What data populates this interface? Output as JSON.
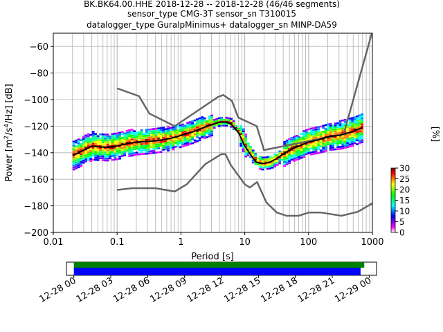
{
  "title_lines": [
    "BK.BK64.00.HHE   2018-12-28 -- 2018-12-28  (46/46 segments)",
    "sensor_type CMG-3T sensor_sn T310015",
    "datalogger_type GuralpMinimus+ datalogger_sn MINP-DA59"
  ],
  "colors": {
    "model_curves": "#666666",
    "mean_curve": "#000000",
    "mode_curve": "#ffff00",
    "grid": "#b0b0b0",
    "coverage_top": "#008000",
    "coverage_bottom": "#0000ff",
    "colormap": [
      "#ffffff",
      "#ff00ff",
      "#8000ff",
      "#0000ff",
      "#0080ff",
      "#00ffff",
      "#00ff80",
      "#00ff00",
      "#80ff00",
      "#ffff00",
      "#ff8000",
      "#ff0000",
      "#800000"
    ]
  },
  "chart_data": [
    {
      "type": "heatmap",
      "title": "BK.BK64.00.HHE   2018-12-28 -- 2018-12-28  (46/46 segments)",
      "xlabel": "Period [s]",
      "ylabel": "Power [m²/s⁴/Hz] [dB]",
      "xscale": "log",
      "xlim": [
        0.01,
        1000
      ],
      "ylim": [
        -200,
        -50
      ],
      "xticks": [
        0.01,
        0.1,
        1,
        10,
        100,
        1000
      ],
      "xtick_labels": [
        "0.01",
        "0.1",
        "1",
        "10",
        "100",
        "1000"
      ],
      "yticks": [
        -200,
        -180,
        -160,
        -140,
        -120,
        -100,
        -80,
        -60
      ],
      "ytick_labels": [
        "−200",
        "−180",
        "−160",
        "−140",
        "−120",
        "−100",
        "−80",
        "−60"
      ],
      "grid": true,
      "colorbar": {
        "label": "[%]",
        "range": [
          0,
          30
        ],
        "ticks": [
          0,
          5,
          10,
          15,
          20,
          25,
          30
        ],
        "tick_labels": [
          "0",
          "5",
          "10",
          "15",
          "20",
          "25",
          "30"
        ]
      },
      "series": [
        {
          "name": "",
          "role": "new-high-noise-model",
          "x": [
            0.1,
            0.22,
            0.32,
            0.8,
            3.8,
            4.6,
            6.3,
            7.9,
            15.4,
            20,
            354.8,
            10000
          ],
          "y": [
            -91.5,
            -97.4,
            -110.5,
            -120,
            -98,
            -96.5,
            -101,
            -113.5,
            -120,
            -138,
            -126,
            -48.5
          ]
        },
        {
          "name": "",
          "role": "new-low-noise-model",
          "x": [
            0.1,
            0.17,
            0.4,
            0.8,
            1.24,
            2.4,
            4.3,
            5,
            6,
            10,
            12,
            15.6,
            21.9,
            31.6,
            45,
            70,
            101,
            154,
            328,
            600,
            1000
          ],
          "y": [
            -168,
            -166.7,
            -166.7,
            -169.2,
            -163.7,
            -148.6,
            -141.1,
            -141.1,
            -149,
            -163.8,
            -166.2,
            -162.1,
            -177.5,
            -185,
            -187.5,
            -187.5,
            -185,
            -185,
            -187.5,
            -184.4,
            -178
          ]
        },
        {
          "name": "",
          "role": "mean-psd",
          "x": [
            0.02,
            0.025,
            0.03,
            0.04,
            0.05,
            0.07,
            0.1,
            0.15,
            0.2,
            0.3,
            0.5,
            0.8,
            1,
            1.5,
            2,
            3,
            4,
            5,
            6,
            8,
            10,
            13,
            15,
            18,
            20,
            25,
            30,
            40,
            50,
            70,
            100,
            150,
            200,
            300,
            500,
            700
          ],
          "y": [
            -142,
            -140,
            -138,
            -135,
            -135.5,
            -136,
            -135,
            -133,
            -132,
            -131.5,
            -130.5,
            -128.5,
            -127,
            -124.5,
            -122,
            -119,
            -117,
            -117,
            -118,
            -125,
            -135,
            -143,
            -147,
            -148,
            -148,
            -147,
            -145,
            -141,
            -138,
            -135,
            -132,
            -130,
            -128,
            -127,
            -124,
            -121
          ]
        }
      ],
      "coverage": {
        "xlabel_ticks": [
          "12-28 00",
          "12-28 03",
          "12-28 06",
          "12-28 09",
          "12-28 12",
          "12-28 15",
          "12-28 18",
          "12-28 21",
          "12-29 00"
        ],
        "start_hours": 0,
        "end_hours_top": 23.6,
        "end_hours_bottom": 23.3,
        "axis_range_hours": [
          -0.6,
          24.6
        ]
      }
    }
  ]
}
